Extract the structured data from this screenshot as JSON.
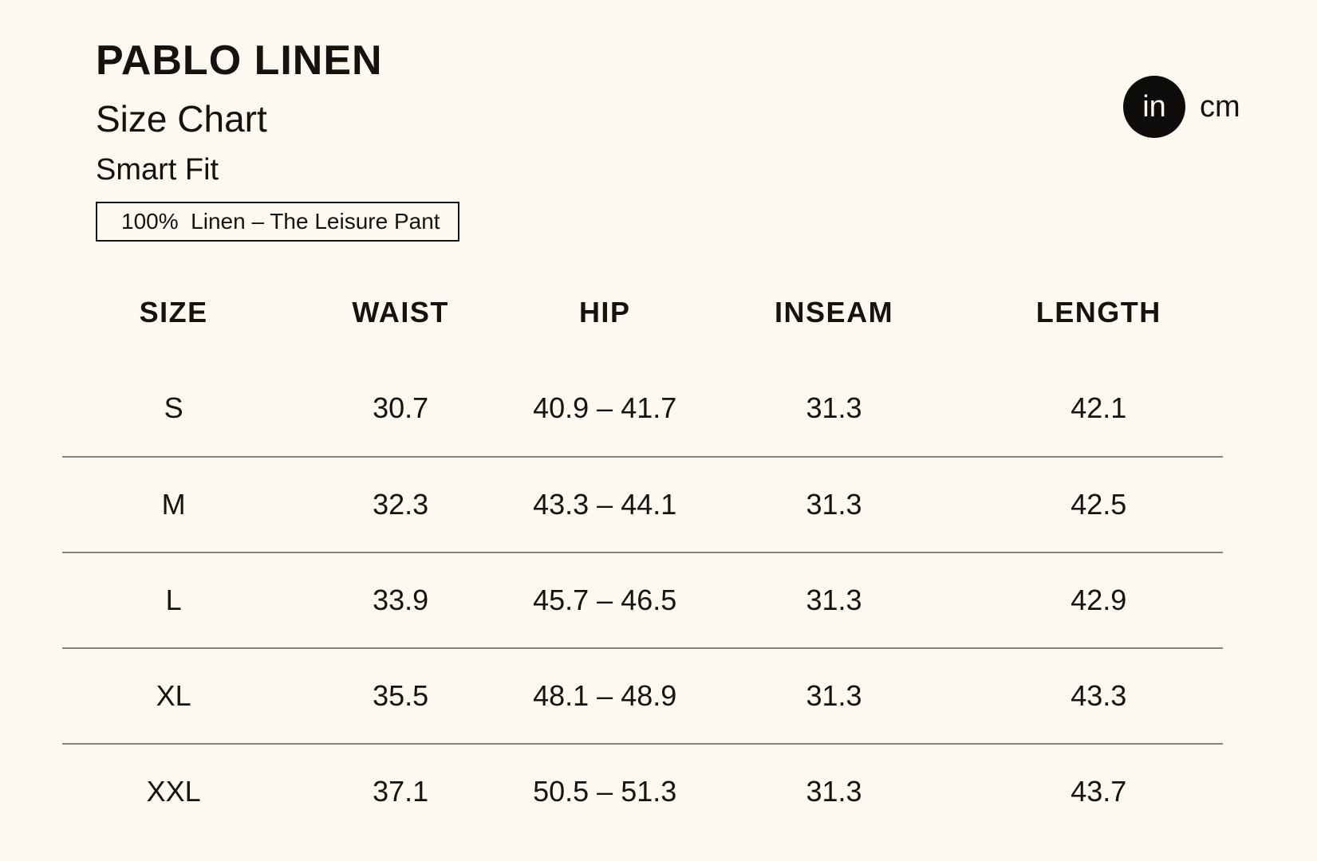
{
  "colors": {
    "bg": "#FDF8F0",
    "ink": "#15130F",
    "divider": "#8B8478",
    "toggle-bg": "#0D0C0A",
    "toggle-fg": "#FDF8F0"
  },
  "header": {
    "title": "PABLO LINEN",
    "subtitle": "Size Chart",
    "fit": "Smart Fit",
    "fabric_note": "100%  Linen – The Leisure Pant"
  },
  "unit_toggle": {
    "selected": "in",
    "option_in": "in",
    "option_cm": "cm"
  },
  "table": {
    "columns": [
      "SIZE",
      "WAIST",
      "HIP",
      "INSEAM",
      "LENGTH"
    ],
    "rows": [
      {
        "size": "S",
        "waist": "30.7",
        "hip": "40.9 – 41.7",
        "inseam": "31.3",
        "length": "42.1"
      },
      {
        "size": "M",
        "waist": "32.3",
        "hip": "43.3 – 44.1",
        "inseam": "31.3",
        "length": "42.5"
      },
      {
        "size": "L",
        "waist": "33.9",
        "hip": "45.7 – 46.5",
        "inseam": "31.3",
        "length": "42.9"
      },
      {
        "size": "XL",
        "waist": "35.5",
        "hip": "48.1 – 48.9",
        "inseam": "31.3",
        "length": "43.3"
      },
      {
        "size": "XXL",
        "waist": "37.1",
        "hip": "50.5 – 51.3",
        "inseam": "31.3",
        "length": "43.7"
      }
    ]
  }
}
